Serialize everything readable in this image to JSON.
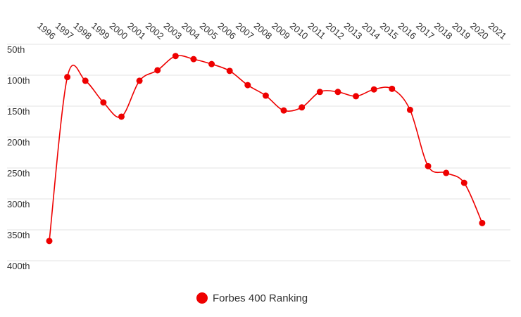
{
  "chart_data": {
    "type": "line",
    "categories": [
      "1996",
      "1997",
      "1998",
      "1999",
      "2000",
      "2001",
      "2002",
      "2003",
      "2004",
      "2005",
      "2006",
      "2007",
      "2008",
      "2009",
      "2010",
      "2011",
      "2012",
      "2013",
      "2014",
      "2015",
      "2016",
      "2017",
      "2018",
      "2019",
      "2020",
      "2021"
    ],
    "series": [
      {
        "name": "Forbes 400 Ranking",
        "color": "#ee0000",
        "values": [
          368,
          103,
          109,
          144,
          167,
          109,
          92,
          69,
          74,
          82,
          93,
          116,
          133,
          157,
          152,
          127,
          127,
          134,
          123,
          122,
          156,
          247,
          258,
          274,
          339,
          null
        ]
      }
    ],
    "ylim": [
      50,
      400
    ],
    "y_inverted": true,
    "yticks": [
      {
        "value": 50,
        "label": "50th"
      },
      {
        "value": 100,
        "label": "100th"
      },
      {
        "value": 150,
        "label": "150th"
      },
      {
        "value": 200,
        "label": "200th"
      },
      {
        "value": 250,
        "label": "250th"
      },
      {
        "value": 300,
        "label": "300th"
      },
      {
        "value": 350,
        "label": "350th"
      },
      {
        "value": 400,
        "label": "400th"
      }
    ],
    "grid": true,
    "smooth": true,
    "legend": "bottom"
  }
}
